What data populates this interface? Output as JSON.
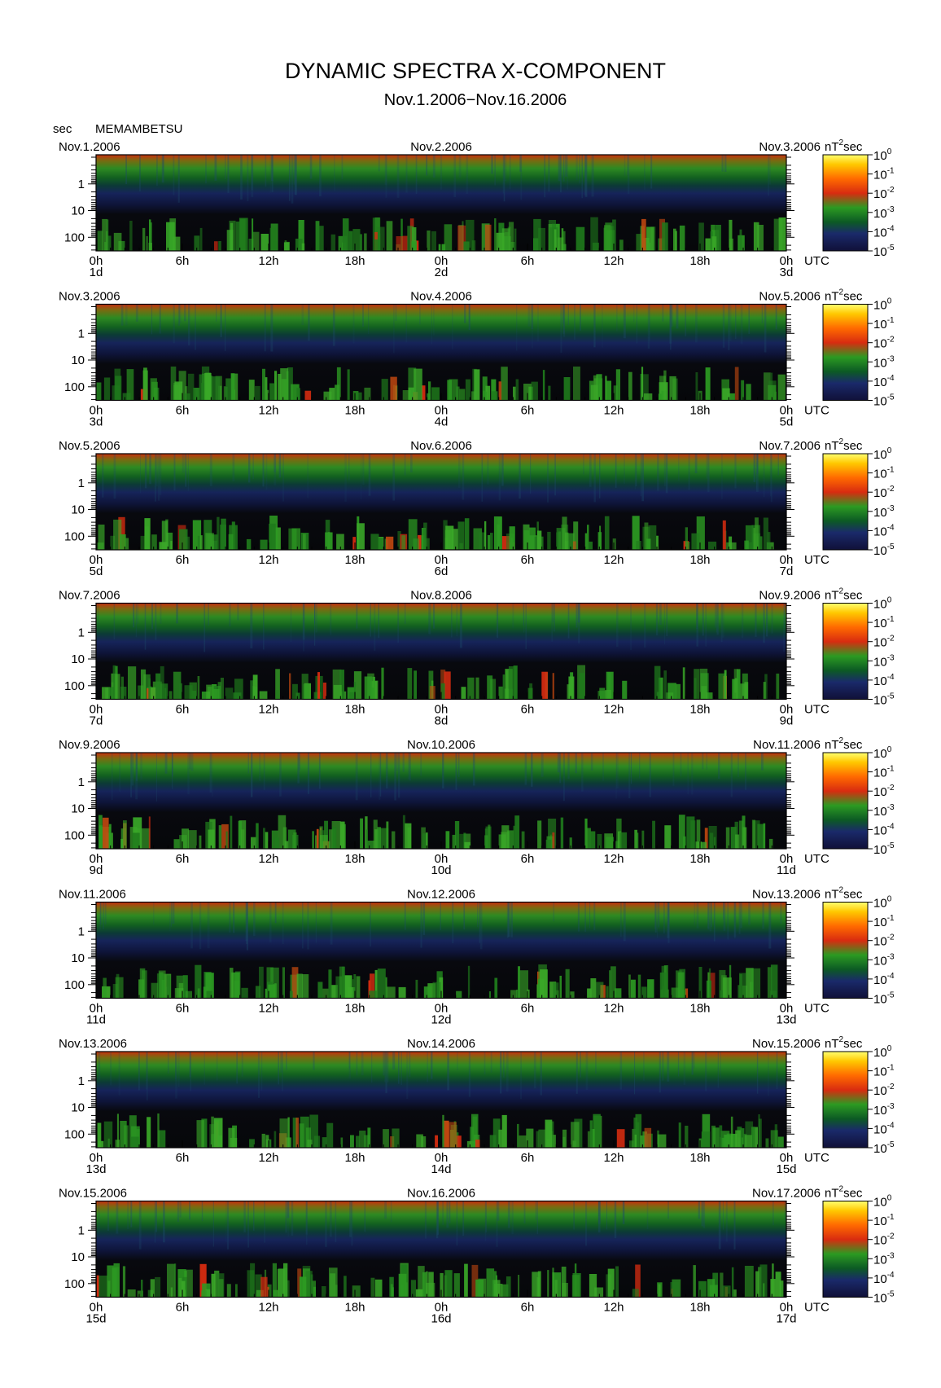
{
  "chart_data": {
    "type": "heatmap",
    "title": "DYNAMIC SPECTRA X-COMPONENT",
    "subtitle": "Nov.1.2006−Nov.16.2006",
    "station": "MEMAMBETSU",
    "ylabel": "sec",
    "y_scale": "log",
    "y_ticks": [
      "1",
      "10",
      "100"
    ],
    "x_ticks": [
      "0h",
      "6h",
      "12h",
      "18h",
      "0h",
      "6h",
      "12h",
      "18h",
      "0h"
    ],
    "x_unit": "UTC",
    "colorbar": {
      "unit_prefix": "nT",
      "unit_sup": "2",
      "unit_suffix": "sec",
      "tick_base": "10",
      "tick_exps": [
        "0",
        "-1",
        "-2",
        "-3",
        "-4",
        "-5"
      ]
    },
    "panels": [
      {
        "left_date": "Nov.1.2006",
        "mid_date": "Nov.2.2006",
        "right_date": "Nov.3.2006",
        "day_labels": [
          "1d",
          "2d",
          "3d"
        ]
      },
      {
        "left_date": "Nov.3.2006",
        "mid_date": "Nov.4.2006",
        "right_date": "Nov.5.2006",
        "day_labels": [
          "3d",
          "4d",
          "5d"
        ]
      },
      {
        "left_date": "Nov.5.2006",
        "mid_date": "Nov.6.2006",
        "right_date": "Nov.7.2006",
        "day_labels": [
          "5d",
          "6d",
          "7d"
        ]
      },
      {
        "left_date": "Nov.7.2006",
        "mid_date": "Nov.8.2006",
        "right_date": "Nov.9.2006",
        "day_labels": [
          "7d",
          "8d",
          "9d"
        ]
      },
      {
        "left_date": "Nov.9.2006",
        "mid_date": "Nov.10.2006",
        "right_date": "Nov.11.2006",
        "day_labels": [
          "9d",
          "10d",
          "11d"
        ]
      },
      {
        "left_date": "Nov.11.2006",
        "mid_date": "Nov.12.2006",
        "right_date": "Nov.13.2006",
        "day_labels": [
          "11d",
          "12d",
          "13d"
        ]
      },
      {
        "left_date": "Nov.13.2006",
        "mid_date": "Nov.14.2006",
        "right_date": "Nov.15.2006",
        "day_labels": [
          "13d",
          "14d",
          "15d"
        ]
      },
      {
        "left_date": "Nov.15.2006",
        "mid_date": "Nov.16.2006",
        "right_date": "Nov.17.2006",
        "day_labels": [
          "15d",
          "16d",
          "17d"
        ]
      }
    ],
    "colors": {
      "background": "#0a0c10",
      "scale": [
        "#101038",
        "#1a2a6a",
        "#0c5a24",
        "#2c9a22",
        "#d82c10",
        "#ff6a00",
        "#ffc800",
        "#ffff70"
      ]
    }
  }
}
